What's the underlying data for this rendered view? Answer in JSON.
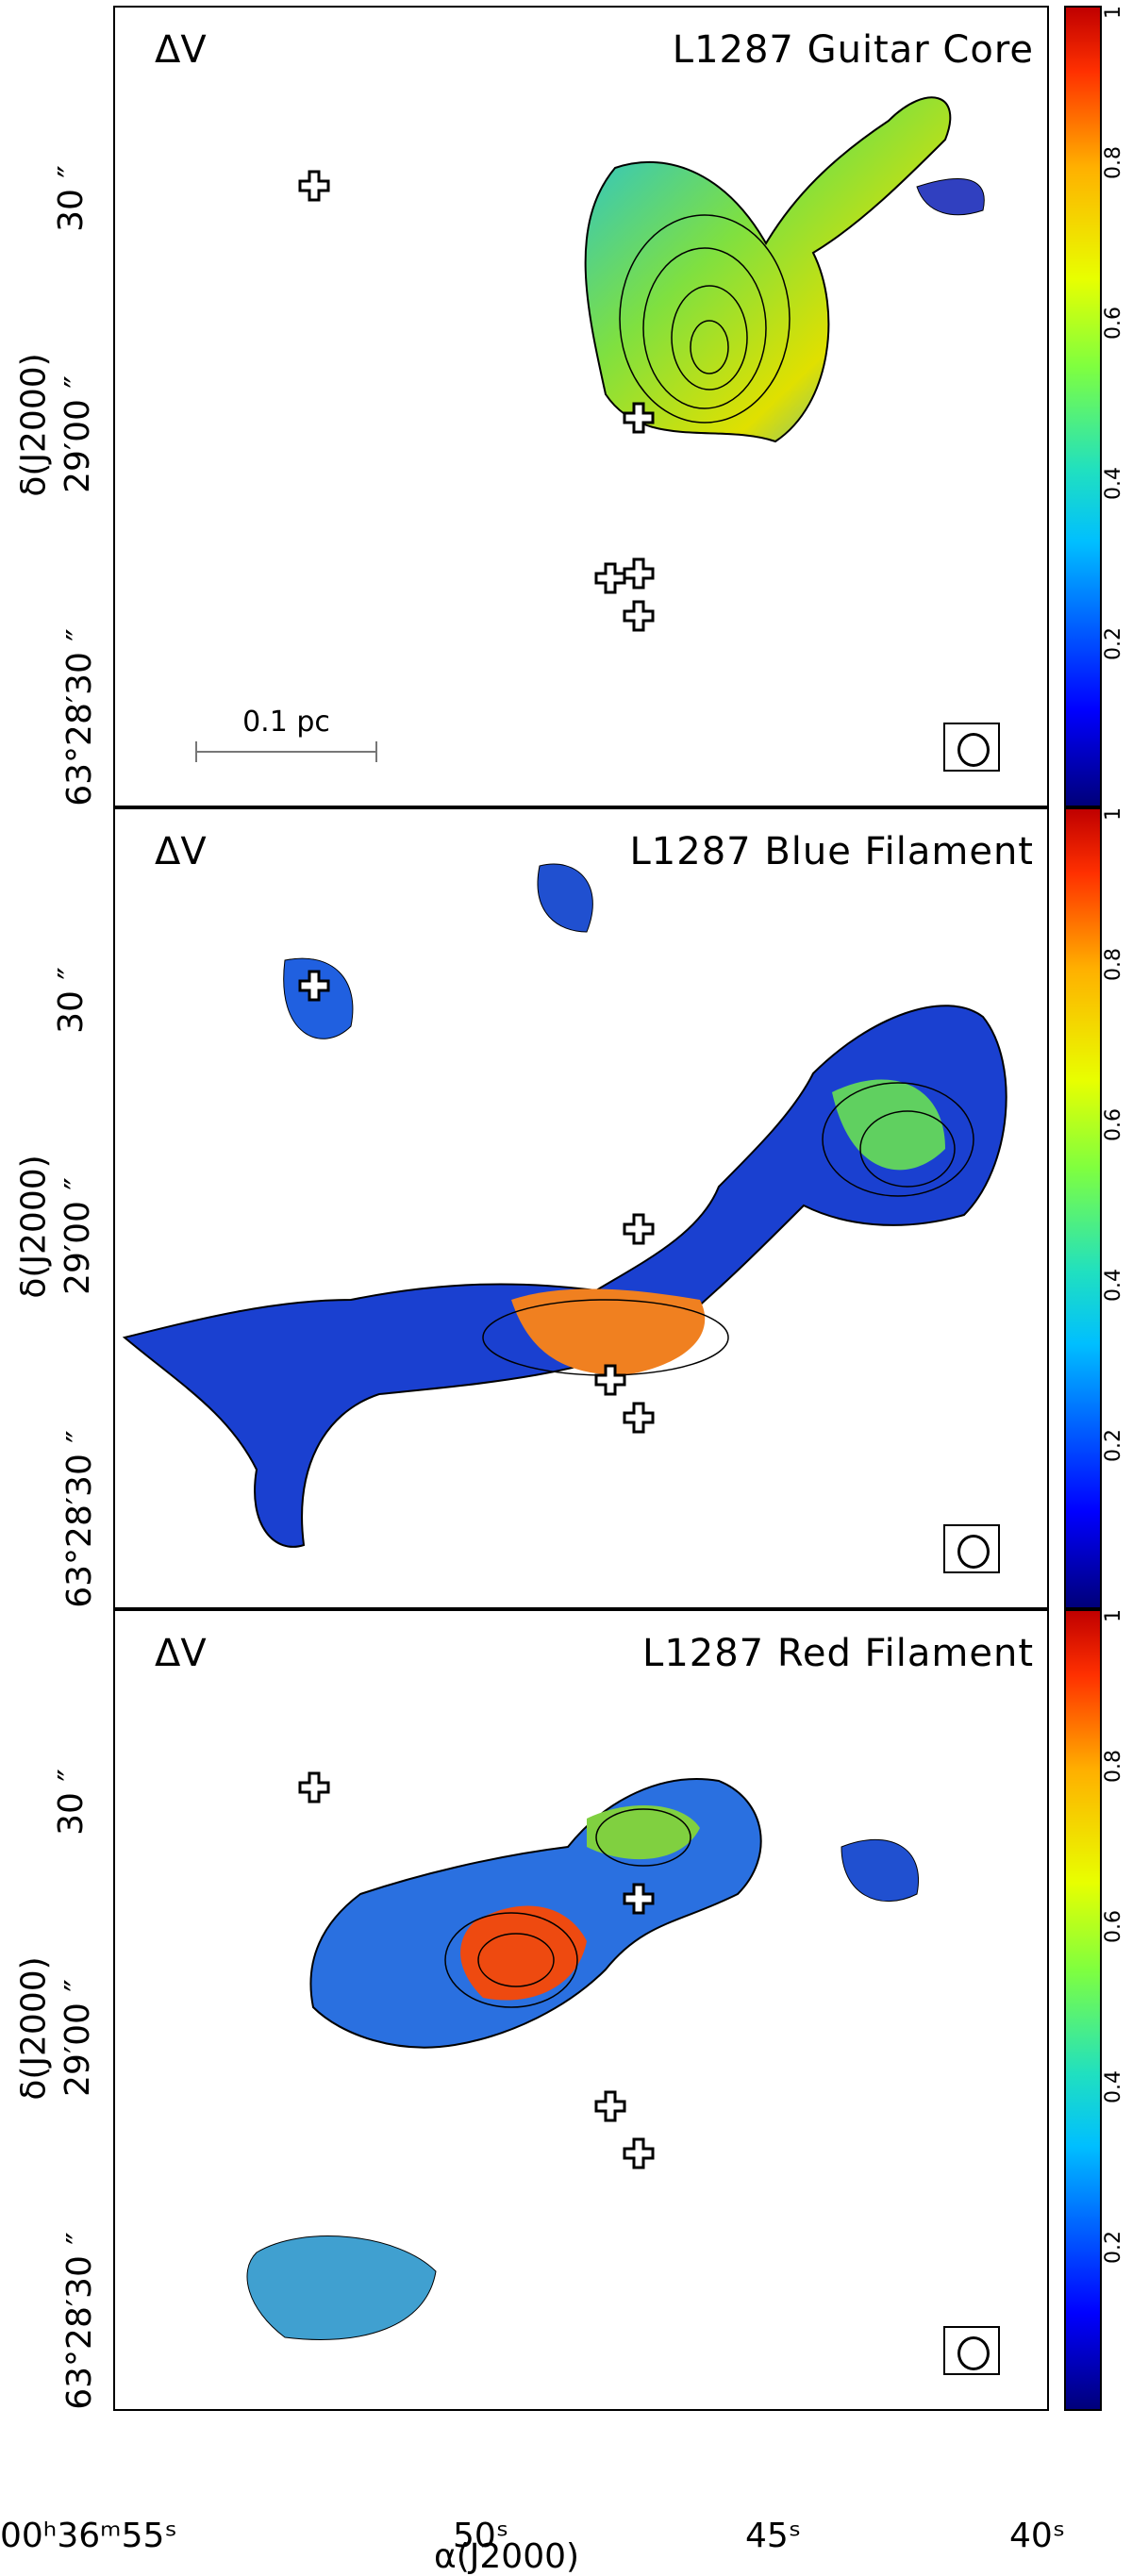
{
  "panels": [
    {
      "label_dv": "ΔV",
      "title": "L1287 Guitar Core",
      "scalebar": "0.1 pc"
    },
    {
      "label_dv": "ΔV",
      "title": "L1287 Blue Filament"
    },
    {
      "label_dv": "ΔV",
      "title": "L1287 Red Filament"
    }
  ],
  "yaxis": {
    "label": "δ(J2000)",
    "ticks": [
      "30 ″",
      "29′00 ″",
      "63°28′30 ″"
    ]
  },
  "xaxis": {
    "label": "α(J2000)",
    "ticks": [
      "00ʰ36ᵐ55ˢ",
      "50ˢ",
      "45ˢ",
      "40ˢ"
    ]
  },
  "colorbar": {
    "ticks": [
      "0.2",
      "0.4",
      "0.6",
      "0.8",
      "1"
    ]
  },
  "colors": {
    "crosses": "#000000",
    "contours": "#000000"
  }
}
